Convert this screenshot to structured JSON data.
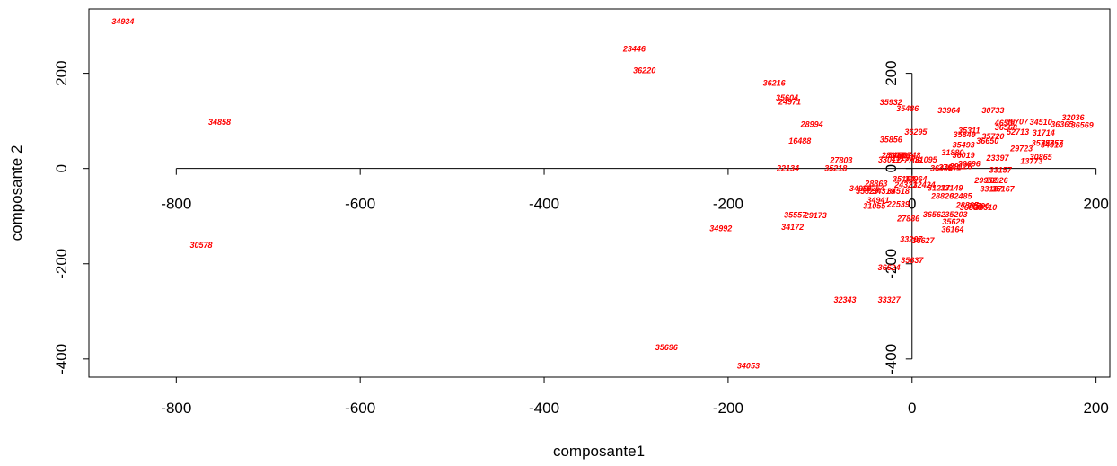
{
  "chart_data": {
    "type": "scatter",
    "title": "",
    "xlabel": "composante1",
    "ylabel": "composante 2",
    "xlim": [
      -895,
      215
    ],
    "ylim": [
      -438,
      335
    ],
    "x_ticks": [
      -800,
      -600,
      -400,
      -200,
      0,
      200
    ],
    "y_ticks": [
      -400,
      -200,
      0,
      200
    ],
    "x_tick_labels": [
      "-800",
      "-600",
      "-400",
      "-200",
      "0",
      "200"
    ],
    "y_tick_labels": [
      "-400",
      "-200",
      "0",
      "200"
    ],
    "origin_axes": true,
    "grid": false,
    "legend": "none",
    "label_color": "#ff0000",
    "points": [
      {
        "label": "34934",
        "x": -858,
        "y": 309
      },
      {
        "label": "34858",
        "x": -753,
        "y": 97
      },
      {
        "label": "30578",
        "x": -773,
        "y": -161
      },
      {
        "label": "23446",
        "x": -302,
        "y": 251
      },
      {
        "label": "36220",
        "x": -291,
        "y": 206
      },
      {
        "label": "36216",
        "x": -150,
        "y": 179
      },
      {
        "label": "35604",
        "x": -136,
        "y": 148
      },
      {
        "label": "24971",
        "x": -133,
        "y": 140
      },
      {
        "label": "28994",
        "x": -109,
        "y": 93
      },
      {
        "label": "16488",
        "x": -122,
        "y": 58
      },
      {
        "label": "27803",
        "x": -77,
        "y": 17
      },
      {
        "label": "22134",
        "x": -135,
        "y": 0
      },
      {
        "label": "35218",
        "x": -83,
        "y": 0
      },
      {
        "label": "35557",
        "x": -127,
        "y": -98
      },
      {
        "label": "29173",
        "x": -105,
        "y": -99
      },
      {
        "label": "34172",
        "x": -130,
        "y": -123
      },
      {
        "label": "34992",
        "x": -208,
        "y": -126
      },
      {
        "label": "32343",
        "x": -73,
        "y": -276
      },
      {
        "label": "33327",
        "x": -25,
        "y": -276
      },
      {
        "label": "35696",
        "x": -267,
        "y": -376
      },
      {
        "label": "34053",
        "x": -178,
        "y": -414
      },
      {
        "label": "35932",
        "x": -23,
        "y": 139
      },
      {
        "label": "35486",
        "x": -5,
        "y": 126
      },
      {
        "label": "33964",
        "x": 40,
        "y": 122
      },
      {
        "label": "30733",
        "x": 88,
        "y": 122
      },
      {
        "label": "36295",
        "x": 4,
        "y": 77
      },
      {
        "label": "35856",
        "x": -23,
        "y": 61
      },
      {
        "label": "35311",
        "x": 62,
        "y": 80
      },
      {
        "label": "35849",
        "x": 57,
        "y": 71
      },
      {
        "label": "35720",
        "x": 88,
        "y": 67
      },
      {
        "label": "36650",
        "x": 82,
        "y": 58
      },
      {
        "label": "35493",
        "x": 56,
        "y": 49
      },
      {
        "label": "29723",
        "x": 119,
        "y": 42
      },
      {
        "label": "31880",
        "x": 44,
        "y": 33
      },
      {
        "label": "36019",
        "x": 56,
        "y": 28
      },
      {
        "label": "23397",
        "x": 93,
        "y": 22
      },
      {
        "label": "13773",
        "x": 130,
        "y": 15
      },
      {
        "label": "30865",
        "x": 140,
        "y": 24
      },
      {
        "label": "35727",
        "x": 142,
        "y": 53
      },
      {
        "label": "35857",
        "x": 152,
        "y": 53
      },
      {
        "label": "34918",
        "x": 152,
        "y": 49
      },
      {
        "label": "36707",
        "x": 114,
        "y": 98
      },
      {
        "label": "46500",
        "x": 102,
        "y": 96
      },
      {
        "label": "36568",
        "x": 102,
        "y": 86
      },
      {
        "label": "52713",
        "x": 115,
        "y": 77
      },
      {
        "label": "31714",
        "x": 143,
        "y": 75
      },
      {
        "label": "34510",
        "x": 140,
        "y": 97
      },
      {
        "label": "32036",
        "x": 175,
        "y": 107
      },
      {
        "label": "36365",
        "x": 163,
        "y": 93
      },
      {
        "label": "36569",
        "x": 185,
        "y": 91
      },
      {
        "label": "28304",
        "x": -21,
        "y": 28
      },
      {
        "label": "34596",
        "x": -14,
        "y": 28
      },
      {
        "label": "36748",
        "x": -3,
        "y": 28
      },
      {
        "label": "29193",
        "x": -10,
        "y": 22
      },
      {
        "label": "33011",
        "x": -25,
        "y": 18
      },
      {
        "label": "27706",
        "x": -2,
        "y": 16
      },
      {
        "label": "31095",
        "x": 15,
        "y": 18
      },
      {
        "label": "36448",
        "x": 32,
        "y": 0
      },
      {
        "label": "27641",
        "x": 41,
        "y": 2
      },
      {
        "label": "30696",
        "x": 62,
        "y": 10
      },
      {
        "label": "29126",
        "x": 53,
        "y": 4
      },
      {
        "label": "33157",
        "x": 96,
        "y": -3
      },
      {
        "label": "29952",
        "x": 80,
        "y": -25
      },
      {
        "label": "30926",
        "x": 92,
        "y": -25
      },
      {
        "label": "33187",
        "x": 86,
        "y": -43
      },
      {
        "label": "35167",
        "x": 99,
        "y": -43
      },
      {
        "label": "35164",
        "x": -9,
        "y": -22
      },
      {
        "label": "33964",
        "x": 4,
        "y": -22
      },
      {
        "label": "28863",
        "x": -39,
        "y": -32
      },
      {
        "label": "34964",
        "x": -56,
        "y": -42
      },
      {
        "label": "36254",
        "x": -42,
        "y": -42
      },
      {
        "label": "35829",
        "x": -49,
        "y": -48
      },
      {
        "label": "34319",
        "x": -31,
        "y": -48
      },
      {
        "label": "34518",
        "x": -15,
        "y": -48
      },
      {
        "label": "24321",
        "x": -7,
        "y": -35
      },
      {
        "label": "32424",
        "x": 13,
        "y": -35
      },
      {
        "label": "31217",
        "x": 29,
        "y": -41
      },
      {
        "label": "33149",
        "x": 43,
        "y": -41
      },
      {
        "label": "28826",
        "x": 33,
        "y": -58
      },
      {
        "label": "32485",
        "x": 53,
        "y": -58
      },
      {
        "label": "34941",
        "x": -37,
        "y": -67
      },
      {
        "label": "22539",
        "x": -15,
        "y": -75
      },
      {
        "label": "31055",
        "x": -41,
        "y": -79
      },
      {
        "label": "28865",
        "x": 60,
        "y": -77
      },
      {
        "label": "31790",
        "x": 72,
        "y": -79
      },
      {
        "label": "36830",
        "x": 64,
        "y": -82
      },
      {
        "label": "36510",
        "x": 80,
        "y": -82
      },
      {
        "label": "27886",
        "x": -4,
        "y": -105
      },
      {
        "label": "36562",
        "x": 24,
        "y": -97
      },
      {
        "label": "35203",
        "x": 48,
        "y": -97
      },
      {
        "label": "35629",
        "x": 45,
        "y": -112
      },
      {
        "label": "36164",
        "x": 44,
        "y": -128
      },
      {
        "label": "33207",
        "x": -1,
        "y": -149
      },
      {
        "label": "36627",
        "x": 12,
        "y": -151
      },
      {
        "label": "35637",
        "x": 0,
        "y": -193
      },
      {
        "label": "36624",
        "x": -25,
        "y": -208
      }
    ]
  }
}
